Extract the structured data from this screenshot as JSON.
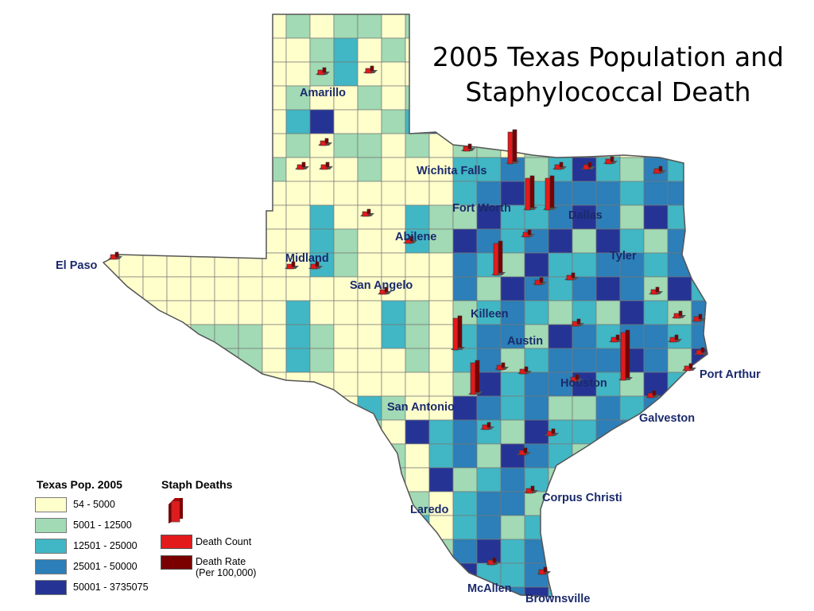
{
  "title": {
    "line1": "2005 Texas Population and",
    "line2": "Staphylococcal Death"
  },
  "colors": {
    "c1": "#ffffcc",
    "c2": "#a1dab4",
    "c3": "#41b6c4",
    "c4": "#2c7fb8",
    "c5": "#253494",
    "death_count": "#e31a1c",
    "death_rate": "#7a0000",
    "label": "#1a2a6c"
  },
  "cities": [
    {
      "name": "Amarillo"
    },
    {
      "name": "Wichita Falls"
    },
    {
      "name": "Fort Worth"
    },
    {
      "name": "Dallas"
    },
    {
      "name": "Abilene"
    },
    {
      "name": "Tyler"
    },
    {
      "name": "El Paso"
    },
    {
      "name": "Midland"
    },
    {
      "name": "San Angelo"
    },
    {
      "name": "Killeen"
    },
    {
      "name": "Austin"
    },
    {
      "name": "Port Arthur"
    },
    {
      "name": "Houston"
    },
    {
      "name": "San Antonio"
    },
    {
      "name": "Galveston"
    },
    {
      "name": "Laredo"
    },
    {
      "name": "Corpus Christi"
    },
    {
      "name": "McAllen"
    },
    {
      "name": "Brownsville"
    }
  ],
  "legend": {
    "population_title": "Texas Pop. 2005",
    "population_classes": [
      {
        "label": "54 - 5000",
        "color": "#ffffcc"
      },
      {
        "label": "5001 - 12500",
        "color": "#a1dab4"
      },
      {
        "label": "12501 - 25000",
        "color": "#41b6c4"
      },
      {
        "label": "25001 - 50000",
        "color": "#2c7fb8"
      },
      {
        "label": "50001 - 3735075",
        "color": "#253494"
      }
    ],
    "staph_title": "Staph Deaths",
    "death_count_label": "Death Count",
    "death_rate_label": "Death Rate",
    "death_rate_sub": "(Per 100,000)"
  }
}
